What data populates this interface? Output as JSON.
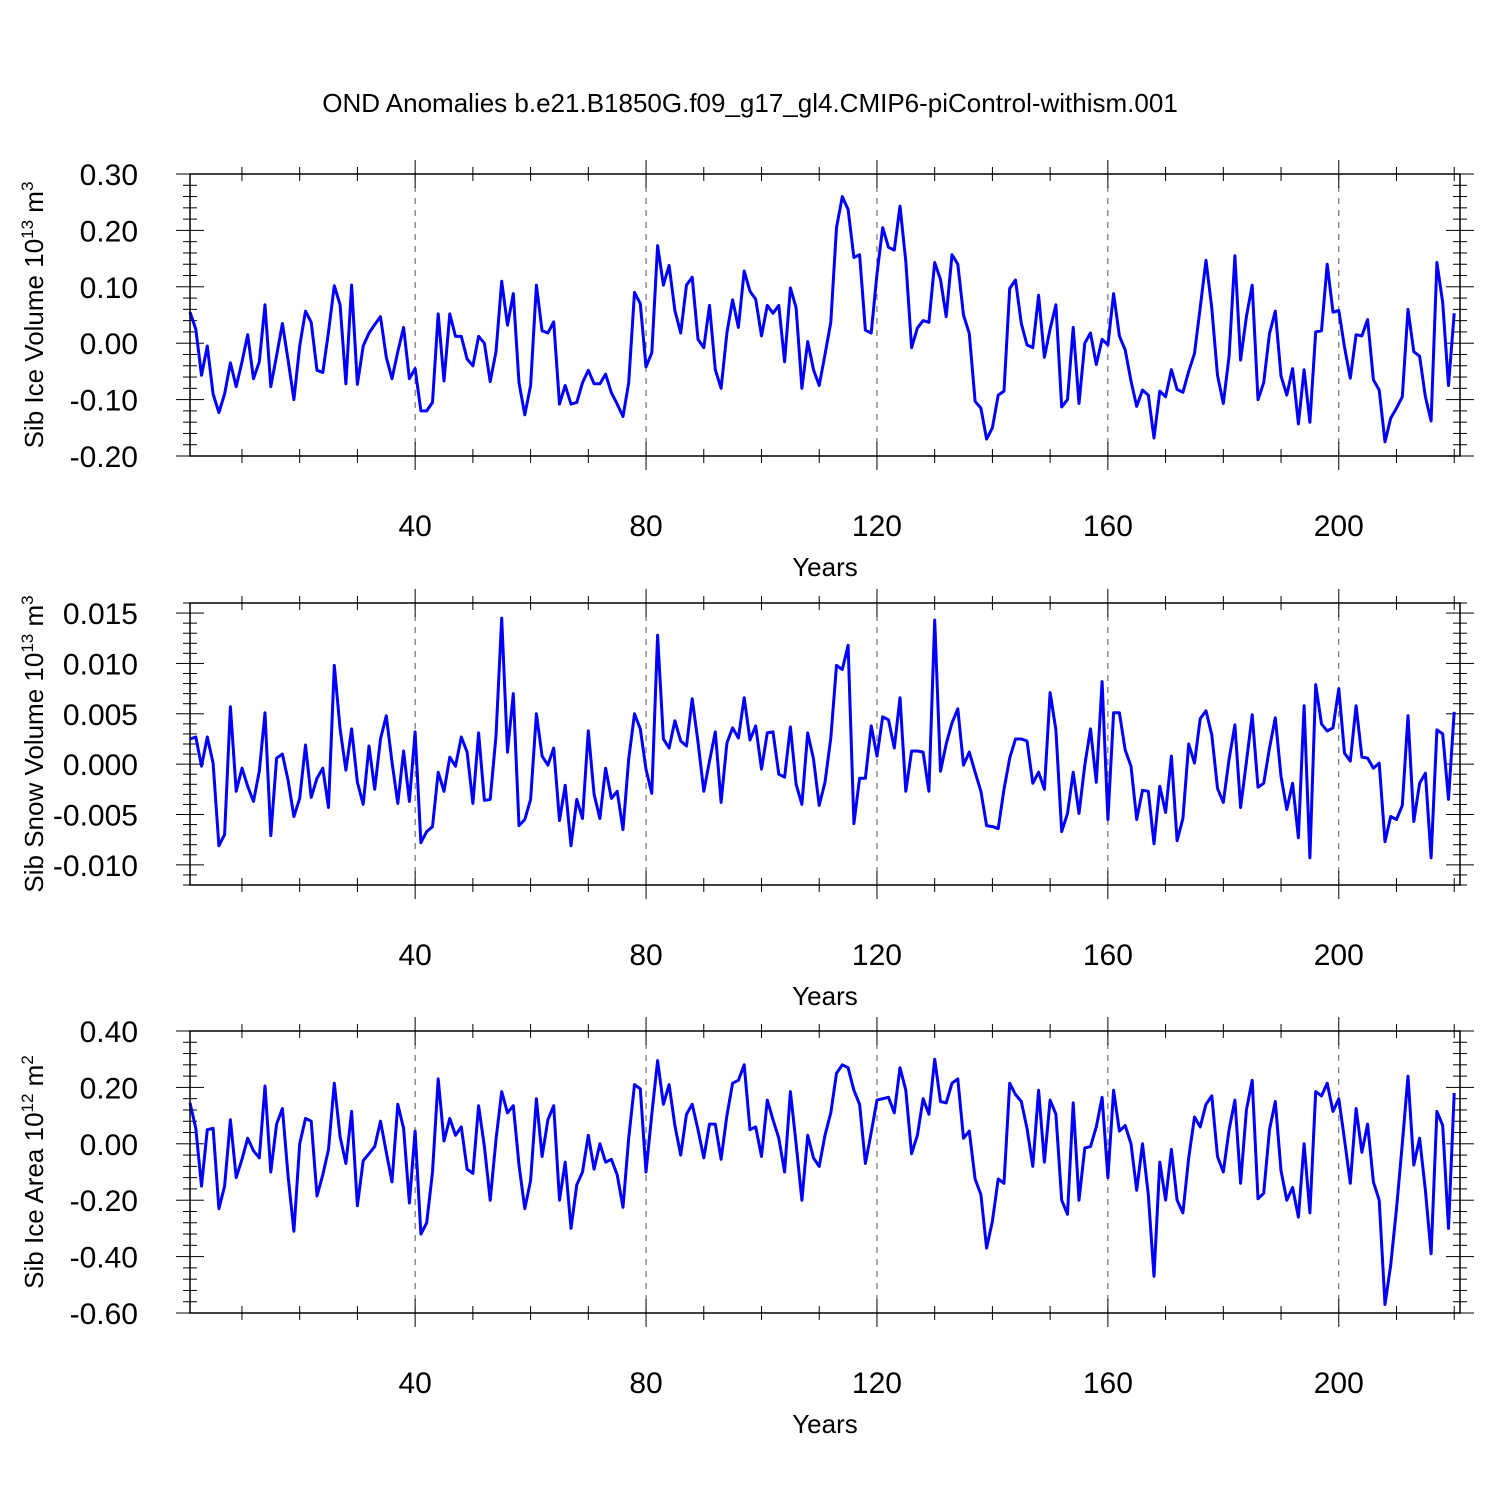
{
  "title": "OND Anomalies b.e21.B1850G.f09_g17_gl4.CMIP6-piControl-withism.001",
  "colors": {
    "line": "#0000ff",
    "axis": "#000000",
    "grid": "#555555"
  },
  "chart_data": [
    {
      "type": "line",
      "name": "ice-volume",
      "ylabel": "Sib Ice Volume 10",
      "ylabel_exp": "13",
      "ylabel_unit": " m",
      "ylabel_unit_exp": "3",
      "xlabel": "Years",
      "xlim": [
        1,
        221
      ],
      "ylim": [
        -0.2,
        0.3
      ],
      "xticks": [
        40,
        80,
        120,
        160,
        200
      ],
      "xtick_labels": [
        "40",
        "80",
        "120",
        "160",
        "200"
      ],
      "yticks": [
        -0.2,
        -0.1,
        0.0,
        0.1,
        0.2,
        0.3
      ],
      "ytick_labels": [
        "-0.20",
        "-0.10",
        "0.00",
        "0.10",
        "0.20",
        "0.30"
      ],
      "grid": "vertical dashed",
      "x": "years 1-221",
      "series": [
        {
          "name": "Sib Ice Volume",
          "values": [
            0.055,
            0.025,
            -0.057,
            -0.005,
            -0.09,
            -0.123,
            -0.09,
            -0.035,
            -0.077,
            -0.033,
            0.015,
            -0.063,
            -0.033,
            0.068,
            -0.077,
            -0.022,
            0.035,
            -0.03,
            -0.1,
            -0.005,
            0.057,
            0.037,
            -0.048,
            -0.052,
            0.02,
            0.102,
            0.068,
            -0.072,
            0.103,
            -0.073,
            -0.005,
            0.018,
            0.033,
            0.047,
            -0.025,
            -0.063,
            -0.015,
            0.028,
            -0.063,
            -0.045,
            -0.12,
            -0.12,
            -0.105,
            0.052,
            -0.067,
            0.052,
            0.012,
            0.012,
            -0.028,
            -0.04,
            0.012,
            0.0,
            -0.068,
            -0.015,
            0.11,
            0.032,
            0.088,
            -0.07,
            -0.127,
            -0.075,
            0.103,
            0.022,
            0.018,
            0.038,
            -0.108,
            -0.075,
            -0.108,
            -0.105,
            -0.07,
            -0.048,
            -0.072,
            -0.072,
            -0.055,
            -0.088,
            -0.108,
            -0.13,
            -0.07,
            0.09,
            0.07,
            -0.042,
            -0.017,
            0.173,
            0.103,
            0.138,
            0.058,
            0.018,
            0.103,
            0.117,
            0.007,
            -0.008,
            0.067,
            -0.047,
            -0.08,
            0.018,
            0.077,
            0.028,
            0.128,
            0.092,
            0.078,
            0.013,
            0.067,
            0.053,
            0.067,
            -0.033,
            0.098,
            0.063,
            -0.08,
            0.003,
            -0.047,
            -0.075,
            -0.02,
            0.037,
            0.205,
            0.26,
            0.237,
            0.152,
            0.157,
            0.023,
            0.018,
            0.123,
            0.205,
            0.17,
            0.165,
            0.243,
            0.145,
            -0.008,
            0.027,
            0.04,
            0.037,
            0.143,
            0.113,
            0.047,
            0.157,
            0.14,
            0.05,
            0.017,
            -0.103,
            -0.115,
            -0.17,
            -0.15,
            -0.092,
            -0.085,
            0.097,
            0.112,
            0.035,
            -0.003,
            -0.008,
            0.085,
            -0.025,
            0.025,
            0.068,
            -0.113,
            -0.1,
            0.028,
            -0.107,
            0.0,
            0.018,
            -0.038,
            0.007,
            -0.003,
            0.088,
            0.013,
            -0.012,
            -0.067,
            -0.112,
            -0.083,
            -0.092,
            -0.168,
            -0.085,
            -0.095,
            -0.047,
            -0.082,
            -0.087,
            -0.05,
            -0.018,
            0.063,
            0.147,
            0.062,
            -0.057,
            -0.107,
            -0.023,
            0.155,
            -0.03,
            0.047,
            0.103,
            -0.1,
            -0.07,
            0.017,
            0.057,
            -0.058,
            -0.092,
            -0.045,
            -0.143,
            -0.047,
            -0.14,
            0.02,
            0.022,
            0.14,
            0.055,
            0.058,
            -0.007,
            -0.062,
            0.015,
            0.013,
            0.042,
            -0.065,
            -0.083,
            -0.175,
            -0.133,
            -0.115,
            -0.095,
            0.06,
            -0.015,
            -0.023,
            -0.095,
            -0.138,
            0.143,
            0.072,
            -0.075,
            0.053
          ]
        }
      ]
    },
    {
      "type": "line",
      "name": "snow-volume",
      "ylabel": "Sib Snow Volume 10",
      "ylabel_exp": "13",
      "ylabel_unit": " m",
      "ylabel_unit_exp": "3",
      "xlabel": "Years",
      "xlim": [
        1,
        221
      ],
      "ylim": [
        -0.012,
        0.016
      ],
      "xticks": [
        40,
        80,
        120,
        160,
        200
      ],
      "xtick_labels": [
        "40",
        "80",
        "120",
        "160",
        "200"
      ],
      "yticks": [
        -0.01,
        -0.005,
        0.0,
        0.005,
        0.01,
        0.015
      ],
      "ytick_labels": [
        "-0.010",
        "-0.005",
        "0.000",
        "0.005",
        "0.010",
        "0.015"
      ],
      "grid": "vertical dashed",
      "x": "years 1-221",
      "series": [
        {
          "name": "Sib Snow Volume",
          "values": [
            0.0025,
            0.0027,
            -0.0002,
            0.0027,
            0.0001,
            -0.0081,
            -0.007,
            0.0057,
            -0.0027,
            -0.0004,
            -0.0022,
            -0.0037,
            -0.0007,
            0.0051,
            -0.0071,
            0.0006,
            0.001,
            -0.0016,
            -0.0052,
            -0.0034,
            0.0019,
            -0.0033,
            -0.0014,
            -0.0004,
            -0.0043,
            0.0098,
            0.0035,
            -0.0006,
            0.0035,
            -0.0018,
            -0.004,
            0.0018,
            -0.0025,
            0.0025,
            0.0048,
            0.0002,
            -0.0039,
            0.0013,
            -0.0037,
            0.0032,
            -0.0078,
            -0.0067,
            -0.0062,
            -0.0008,
            -0.0027,
            0.0007,
            -0.0002,
            0.0027,
            0.0012,
            -0.0039,
            0.0031,
            -0.0036,
            -0.0035,
            0.0028,
            0.0145,
            0.0012,
            0.007,
            -0.0061,
            -0.0055,
            -0.0035,
            0.005,
            0.0008,
            -0.0001,
            0.0016,
            -0.0056,
            -0.0021,
            -0.0081,
            -0.0035,
            -0.0054,
            0.0033,
            -0.003,
            -0.0054,
            -0.0004,
            -0.0034,
            -0.0027,
            -0.0065,
            0.0005,
            0.005,
            0.0035,
            -0.0005,
            -0.0029,
            0.0128,
            0.0025,
            0.0016,
            0.0043,
            0.0023,
            0.0018,
            0.0065,
            0.0022,
            -0.0027,
            0.0003,
            0.0032,
            -0.0038,
            0.0021,
            0.0036,
            0.0026,
            0.0066,
            0.0024,
            0.0038,
            -0.0005,
            0.0031,
            0.0032,
            -0.001,
            -0.0013,
            0.0037,
            -0.002,
            -0.004,
            0.0031,
            0.0005,
            -0.0041,
            -0.0018,
            0.0026,
            0.0098,
            0.0094,
            0.0118,
            -0.0059,
            -0.0014,
            -0.0014,
            0.0038,
            0.0008,
            0.0047,
            0.0044,
            0.0016,
            0.0066,
            -0.0027,
            0.0013,
            0.0013,
            0.0012,
            -0.0027,
            0.0143,
            -0.0007,
            0.002,
            0.0041,
            0.0055,
            -0.0001,
            0.0012,
            -0.0008,
            -0.0027,
            -0.0061,
            -0.0062,
            -0.0064,
            -0.0025,
            0.0006,
            0.0025,
            0.0025,
            0.0023,
            -0.0019,
            -0.0008,
            -0.0025,
            0.0071,
            0.0034,
            -0.0067,
            -0.0049,
            -0.0008,
            -0.0049,
            -0.0001,
            0.0035,
            -0.0018,
            0.0082,
            -0.0055,
            0.0051,
            0.0051,
            0.0014,
            -0.0002,
            -0.0055,
            -0.0026,
            -0.0027,
            -0.0079,
            -0.0022,
            -0.0048,
            0.0008,
            -0.0076,
            -0.0054,
            0.002,
            0.0001,
            0.0045,
            0.0053,
            0.0029,
            -0.0024,
            -0.0038,
            0.0005,
            0.0039,
            -0.0043,
            0.0002,
            0.0049,
            -0.0023,
            -0.0019,
            0.0016,
            0.0046,
            -0.0012,
            -0.0045,
            -0.0019,
            -0.0073,
            0.0058,
            -0.0093,
            0.0079,
            0.004,
            0.0033,
            0.0036,
            0.0075,
            0.0011,
            0.0003,
            0.0058,
            0.0007,
            0.0006,
            -0.0004,
            0.0001,
            -0.0077,
            -0.0052,
            -0.0055,
            -0.0041,
            0.0048,
            -0.0057,
            -0.0019,
            -0.0009,
            -0.0093,
            0.0034,
            0.003,
            -0.0035,
            0.0052
          ]
        }
      ]
    },
    {
      "type": "line",
      "name": "ice-area",
      "ylabel": "Sib Ice Area 10",
      "ylabel_exp": "12",
      "ylabel_unit": " m",
      "ylabel_unit_exp": "2",
      "xlabel": "Years",
      "xlim": [
        1,
        221
      ],
      "ylim": [
        -0.6,
        0.4
      ],
      "xticks": [
        40,
        80,
        120,
        160,
        200
      ],
      "xtick_labels": [
        "40",
        "80",
        "120",
        "160",
        "200"
      ],
      "yticks": [
        -0.6,
        -0.4,
        -0.2,
        0.0,
        0.2,
        0.4
      ],
      "ytick_labels": [
        "-0.60",
        "-0.40",
        "-0.20",
        "0.00",
        "0.20",
        "0.40"
      ],
      "grid": "vertical dashed",
      "x": "years 1-221",
      "series": [
        {
          "name": "Sib Ice Area",
          "values": [
            0.145,
            0.055,
            -0.15,
            0.05,
            0.055,
            -0.23,
            -0.15,
            0.085,
            -0.12,
            -0.055,
            0.02,
            -0.025,
            -0.05,
            0.205,
            -0.1,
            0.07,
            0.125,
            -0.115,
            -0.31,
            0.0,
            0.09,
            0.08,
            -0.185,
            -0.11,
            -0.02,
            0.215,
            0.025,
            -0.07,
            0.115,
            -0.22,
            -0.06,
            -0.035,
            -0.01,
            0.08,
            -0.03,
            -0.135,
            0.14,
            0.055,
            -0.21,
            0.045,
            -0.32,
            -0.28,
            -0.1,
            0.23,
            0.01,
            0.09,
            0.03,
            0.06,
            -0.09,
            -0.105,
            0.135,
            -0.01,
            -0.2,
            0.015,
            0.185,
            0.11,
            0.135,
            -0.075,
            -0.23,
            -0.13,
            0.16,
            -0.045,
            0.085,
            0.135,
            -0.2,
            -0.065,
            -0.3,
            -0.145,
            -0.1,
            0.03,
            -0.09,
            0.0,
            -0.065,
            -0.055,
            -0.11,
            -0.225,
            0.02,
            0.21,
            0.195,
            -0.1,
            0.105,
            0.295,
            0.14,
            0.21,
            0.065,
            -0.04,
            0.105,
            0.14,
            0.05,
            -0.05,
            0.07,
            0.07,
            -0.055,
            0.1,
            0.215,
            0.225,
            0.28,
            0.05,
            0.06,
            -0.045,
            0.155,
            0.085,
            0.02,
            -0.1,
            0.185,
            0.0,
            -0.2,
            0.03,
            -0.05,
            -0.08,
            0.03,
            0.11,
            0.25,
            0.28,
            0.27,
            0.19,
            0.14,
            -0.07,
            0.04,
            0.155,
            0.16,
            0.165,
            0.11,
            0.27,
            0.19,
            -0.035,
            0.03,
            0.16,
            0.105,
            0.3,
            0.15,
            0.145,
            0.215,
            0.23,
            0.02,
            0.045,
            -0.125,
            -0.18,
            -0.37,
            -0.275,
            -0.125,
            -0.14,
            0.215,
            0.175,
            0.15,
            0.055,
            -0.08,
            0.19,
            -0.065,
            0.155,
            0.105,
            -0.2,
            -0.25,
            0.145,
            -0.2,
            -0.015,
            -0.01,
            0.06,
            0.165,
            -0.12,
            0.19,
            0.045,
            0.065,
            0.0,
            -0.165,
            0.0,
            -0.18,
            -0.47,
            -0.065,
            -0.2,
            -0.02,
            -0.2,
            -0.245,
            -0.05,
            0.095,
            0.06,
            0.14,
            0.17,
            -0.045,
            -0.1,
            0.05,
            0.155,
            -0.14,
            0.12,
            0.225,
            -0.195,
            -0.175,
            0.05,
            0.15,
            -0.095,
            -0.2,
            -0.155,
            -0.26,
            0.0,
            -0.245,
            0.185,
            0.17,
            0.215,
            0.115,
            0.16,
            0.015,
            -0.14,
            0.125,
            -0.03,
            0.07,
            -0.135,
            -0.2,
            -0.57,
            -0.43,
            -0.23,
            0.0,
            0.24,
            -0.075,
            0.02,
            -0.165,
            -0.39,
            0.115,
            0.065,
            -0.3,
            0.18
          ]
        }
      ]
    }
  ]
}
